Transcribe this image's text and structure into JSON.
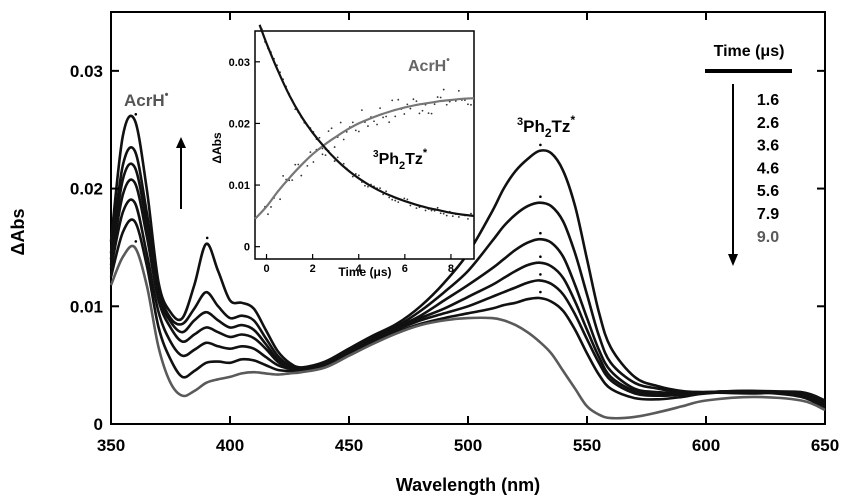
{
  "chart_data": {
    "type": "line",
    "xlabel": "Wavelength (nm)",
    "ylabel": "ΔAbs",
    "xlim": [
      350,
      650
    ],
    "ylim": [
      0,
      0.035
    ],
    "x_ticks": [
      "350",
      "400",
      "450",
      "500",
      "550",
      "600",
      "650"
    ],
    "y_ticks": [
      "0",
      "0.01",
      "0.02",
      "0.03"
    ],
    "legend": {
      "title": "Time (μs)",
      "entries": [
        "1.6",
        "2.6",
        "3.6",
        "4.6",
        "5.6",
        "7.9",
        "9.0"
      ],
      "placement": "top-right"
    },
    "annotations": {
      "acrh": "AcrH",
      "ph2tz_sup3": "3",
      "ph2tz_main": "Ph",
      "ph2tz_sub2": "2",
      "ph2tz_tail": "Tz",
      "star": "*",
      "dot": "•"
    },
    "colors": {
      "dark_series": "#111111",
      "last_series": "#5a5a5a",
      "inset_rise": "#777777"
    },
    "x": [
      350,
      355,
      360,
      365,
      370,
      375,
      380,
      385,
      390,
      395,
      400,
      405,
      410,
      415,
      420,
      425,
      430,
      440,
      450,
      460,
      470,
      480,
      490,
      500,
      510,
      515,
      520,
      525,
      530,
      535,
      540,
      545,
      550,
      555,
      560,
      570,
      580,
      590,
      600,
      620,
      640,
      650
    ],
    "series": [
      {
        "name": "1.6",
        "values": [
          0.0155,
          0.0245,
          0.0258,
          0.02,
          0.012,
          0.0095,
          0.009,
          0.0118,
          0.0153,
          0.013,
          0.0105,
          0.0103,
          0.0098,
          0.008,
          0.0062,
          0.0052,
          0.0048,
          0.0052,
          0.0064,
          0.0075,
          0.0085,
          0.01,
          0.012,
          0.0145,
          0.018,
          0.02,
          0.0215,
          0.0225,
          0.0232,
          0.023,
          0.0215,
          0.0185,
          0.014,
          0.0095,
          0.0065,
          0.004,
          0.0032,
          0.0028,
          0.0027,
          0.0026,
          0.0027,
          0.002
        ]
      },
      {
        "name": "2.6",
        "values": [
          0.0145,
          0.022,
          0.0232,
          0.018,
          0.0115,
          0.009,
          0.0085,
          0.0098,
          0.0112,
          0.01,
          0.009,
          0.0092,
          0.0088,
          0.0073,
          0.0058,
          0.005,
          0.0048,
          0.0053,
          0.0064,
          0.0074,
          0.0083,
          0.0096,
          0.0112,
          0.013,
          0.0155,
          0.0168,
          0.0178,
          0.0185,
          0.0188,
          0.0185,
          0.0172,
          0.0145,
          0.011,
          0.0075,
          0.0052,
          0.0035,
          0.003,
          0.0027,
          0.0027,
          0.0027,
          0.0027,
          0.0018
        ]
      },
      {
        "name": "3.6",
        "values": [
          0.014,
          0.0208,
          0.0218,
          0.017,
          0.011,
          0.0087,
          0.0078,
          0.0088,
          0.0095,
          0.0088,
          0.0082,
          0.0084,
          0.008,
          0.0068,
          0.0055,
          0.0049,
          0.0047,
          0.0052,
          0.0063,
          0.0073,
          0.0082,
          0.0092,
          0.0105,
          0.0118,
          0.0132,
          0.014,
          0.0148,
          0.0154,
          0.0157,
          0.0154,
          0.0142,
          0.0118,
          0.009,
          0.0063,
          0.0045,
          0.003,
          0.0027,
          0.0026,
          0.0027,
          0.0028,
          0.0026,
          0.0016
        ]
      },
      {
        "name": "4.6",
        "values": [
          0.0135,
          0.0195,
          0.0205,
          0.016,
          0.0105,
          0.0082,
          0.007,
          0.0076,
          0.0082,
          0.0078,
          0.0074,
          0.0076,
          0.0073,
          0.0064,
          0.0053,
          0.0048,
          0.0047,
          0.0052,
          0.0062,
          0.0072,
          0.0081,
          0.009,
          0.0098,
          0.0108,
          0.0118,
          0.0124,
          0.013,
          0.0135,
          0.0137,
          0.0134,
          0.0124,
          0.0104,
          0.008,
          0.0057,
          0.004,
          0.0028,
          0.0025,
          0.0025,
          0.0027,
          0.0028,
          0.0025,
          0.0015
        ]
      },
      {
        "name": "5.6",
        "values": [
          0.0132,
          0.018,
          0.0188,
          0.0145,
          0.0095,
          0.007,
          0.0058,
          0.0063,
          0.0069,
          0.0066,
          0.0064,
          0.0066,
          0.0064,
          0.0057,
          0.005,
          0.0047,
          0.0046,
          0.0051,
          0.0061,
          0.0071,
          0.008,
          0.0088,
          0.0094,
          0.01,
          0.0108,
          0.0112,
          0.0116,
          0.012,
          0.0122,
          0.0119,
          0.011,
          0.0093,
          0.0072,
          0.0052,
          0.0037,
          0.0026,
          0.0024,
          0.0025,
          0.0027,
          0.0028,
          0.0024,
          0.0014
        ]
      },
      {
        "name": "7.9",
        "values": [
          0.0125,
          0.0163,
          0.0172,
          0.0135,
          0.0082,
          0.0055,
          0.004,
          0.0045,
          0.0052,
          0.0053,
          0.0052,
          0.0055,
          0.0054,
          0.005,
          0.0046,
          0.0045,
          0.0045,
          0.005,
          0.006,
          0.007,
          0.0078,
          0.0085,
          0.009,
          0.0094,
          0.0098,
          0.0101,
          0.0103,
          0.0106,
          0.0107,
          0.0104,
          0.0096,
          0.008,
          0.006,
          0.0042,
          0.003,
          0.0022,
          0.0021,
          0.0023,
          0.0026,
          0.0027,
          0.0023,
          0.0013
        ]
      },
      {
        "name": "9.0",
        "values": [
          0.0118,
          0.0142,
          0.015,
          0.0118,
          0.0065,
          0.0035,
          0.0024,
          0.0028,
          0.0035,
          0.0038,
          0.004,
          0.0043,
          0.0044,
          0.0043,
          0.0042,
          0.0043,
          0.0044,
          0.0048,
          0.0058,
          0.0068,
          0.0077,
          0.0084,
          0.0088,
          0.009,
          0.009,
          0.0088,
          0.0084,
          0.0078,
          0.007,
          0.006,
          0.0045,
          0.003,
          0.0015,
          0.0008,
          0.0005,
          0.0006,
          0.001,
          0.0015,
          0.002,
          0.0023,
          0.002,
          0.0012
        ]
      }
    ],
    "inset": {
      "xlabel": "Time (μs)",
      "ylabel": "ΔAbs",
      "xlim": [
        -0.5,
        9
      ],
      "ylim": [
        -0.002,
        0.035
      ],
      "x_ticks": [
        "0",
        "2",
        "4",
        "6",
        "8"
      ],
      "y_ticks": [
        "0",
        "0.01",
        "0.02",
        "0.03"
      ],
      "labels": {
        "rise": "AcrH",
        "decay_sup3": "3",
        "decay_main": "Ph",
        "decay_sub2": "2",
        "decay_tail": "Tz",
        "star": "*",
        "dot": "•"
      },
      "series": [
        {
          "name": "AcrH•",
          "x": [
            -0.5,
            0,
            0.5,
            1,
            1.5,
            2,
            2.5,
            3,
            3.5,
            4,
            4.5,
            5,
            5.5,
            6,
            6.5,
            7,
            7.5,
            8,
            8.5,
            9
          ],
          "values": [
            0.0045,
            0.0065,
            0.009,
            0.0112,
            0.0132,
            0.015,
            0.0165,
            0.0178,
            0.019,
            0.02,
            0.0208,
            0.0215,
            0.0221,
            0.0226,
            0.023,
            0.0233,
            0.0236,
            0.0238,
            0.024,
            0.0241
          ]
        },
        {
          "name": "3Ph2Tz*",
          "x": [
            -0.3,
            0,
            0.5,
            1,
            1.5,
            2,
            2.5,
            3,
            3.5,
            4,
            4.5,
            5,
            5.5,
            6,
            6.5,
            7,
            7.5,
            8,
            8.5,
            9
          ],
          "values": [
            0.036,
            0.033,
            0.0285,
            0.0245,
            0.0212,
            0.0185,
            0.0162,
            0.0142,
            0.0125,
            0.0111,
            0.0099,
            0.0089,
            0.0081,
            0.0074,
            0.0068,
            0.0063,
            0.0059,
            0.0055,
            0.0052,
            0.005
          ]
        }
      ]
    }
  }
}
